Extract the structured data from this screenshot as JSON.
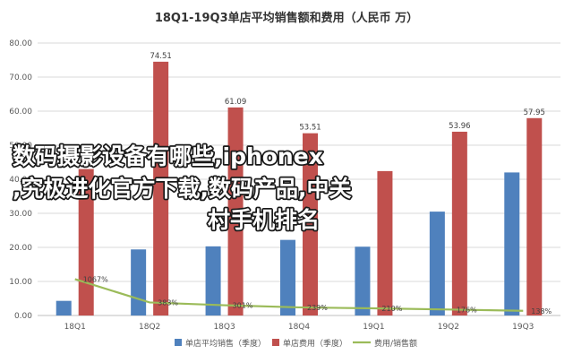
{
  "chart_data": {
    "type": "bar",
    "title": "18Q1-19Q3单店平均销售额和费用（人民币 万）",
    "categories": [
      "18Q1",
      "18Q2",
      "18Q3",
      "18Q4",
      "19Q1",
      "19Q2",
      "19Q3"
    ],
    "ylim": [
      0,
      80
    ],
    "yticks": [
      "0.00",
      "10.00",
      "20.00",
      "30.00",
      "40.00",
      "50.00",
      "60.00",
      "70.00",
      "80.00"
    ],
    "grid": true,
    "legend_position": "bottom",
    "series": [
      {
        "name": "单店平均销售（季度）",
        "type": "bar",
        "color": "#4f81bd",
        "values": [
          4.3,
          19.4,
          20.3,
          22.2,
          20.2,
          30.5,
          42.0
        ]
      },
      {
        "name": "单店费用（季度）",
        "type": "bar",
        "color": "#c0504d",
        "values": [
          43.0,
          74.51,
          61.09,
          53.51,
          42.4,
          53.96,
          57.95
        ],
        "labels": [
          "",
          "74.51",
          "61.09",
          "53.51",
          "",
          "53.96",
          "57.95"
        ]
      },
      {
        "name": "费用/销售额",
        "type": "line",
        "color": "#9bbb59",
        "values": [
          10.67,
          3.83,
          3.01,
          2.39,
          2.1,
          1.76,
          1.38
        ],
        "labels": [
          "1067%",
          "383%",
          "301%",
          "239%",
          "210%",
          "176%",
          "138%"
        ]
      }
    ]
  },
  "overlay": {
    "lines": [
      "数码摄影设备有哪些,iphonex",
      ",究极进化官方下载,数码产品,中关",
      "村手机排名"
    ],
    "color": "#ffffff",
    "stroke": "#1a1a1a"
  }
}
